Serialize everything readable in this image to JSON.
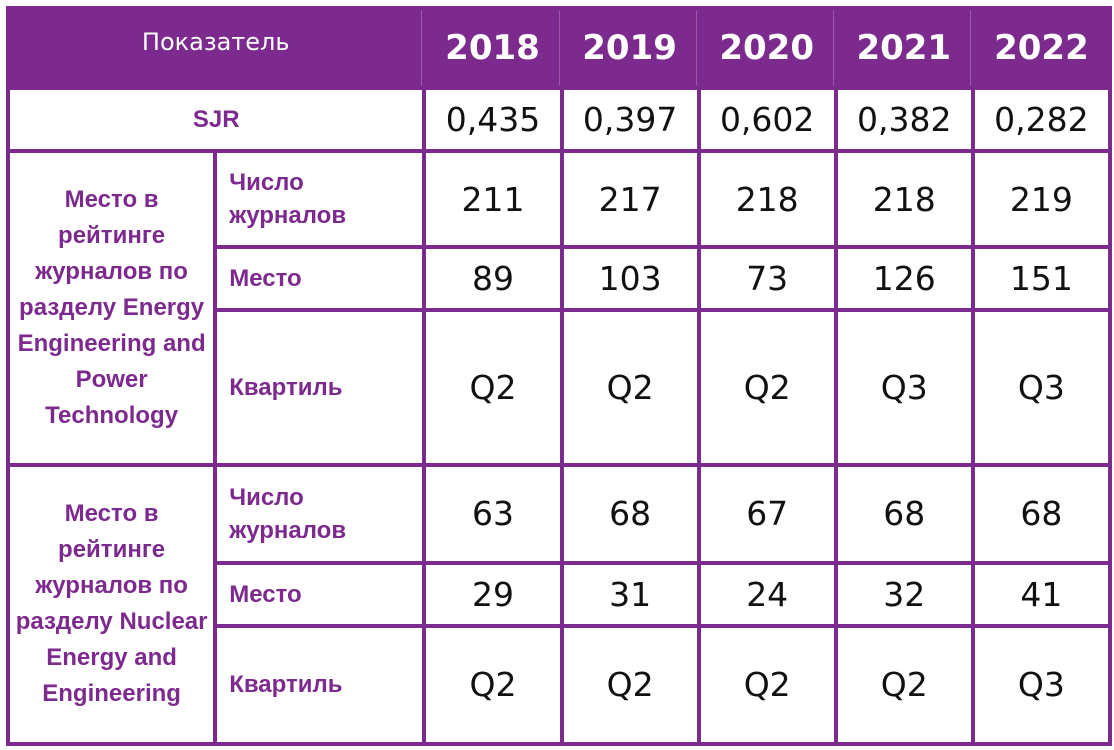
{
  "header": {
    "indicator_label": "Показатель",
    "years": [
      "2018",
      "2019",
      "2020",
      "2021",
      "2022"
    ]
  },
  "sjr": {
    "label": "SJR",
    "values": [
      "0,435",
      "0,397",
      "0,602",
      "0,382",
      "0,282"
    ]
  },
  "groups": [
    {
      "label": "Место в рейтинге журналов по разделу Energy Engineering and Power Technology",
      "rows": [
        {
          "label": "Число журналов",
          "values": [
            "211",
            "217",
            "218",
            "218",
            "219"
          ]
        },
        {
          "label": "Место",
          "values": [
            "89",
            "103",
            "73",
            "126",
            "151"
          ]
        },
        {
          "label": "Квартиль",
          "values": [
            "Q2",
            "Q2",
            "Q2",
            "Q3",
            "Q3"
          ]
        }
      ]
    },
    {
      "label": "Место в рейтинге журналов по разделу Nuclear Energy and Engineering",
      "rows": [
        {
          "label": "Число журналов",
          "values": [
            "63",
            "68",
            "67",
            "68",
            "68"
          ]
        },
        {
          "label": "Место",
          "values": [
            "29",
            "31",
            "24",
            "32",
            "41"
          ]
        },
        {
          "label": "Квартиль",
          "values": [
            "Q2",
            "Q2",
            "Q2",
            "Q2",
            "Q3"
          ]
        }
      ]
    }
  ],
  "colors": {
    "accent": "#7d2a8e",
    "header_text": "#ffffff",
    "cell_text": "#111111"
  }
}
